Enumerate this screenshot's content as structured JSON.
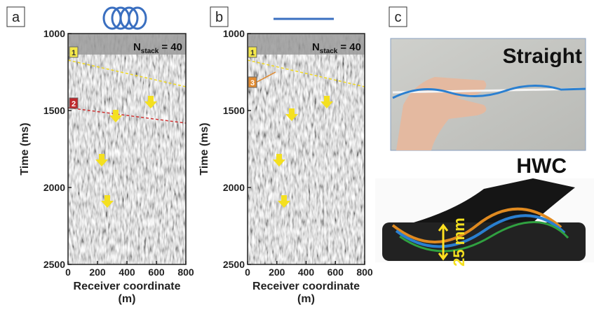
{
  "figure": {
    "panels": [
      {
        "label": "a",
        "stack": {
          "symbol": "N",
          "subscript": "stack",
          "text": "= 40"
        },
        "ylabel": "Time (ms)",
        "xlabel": [
          "Receiver coordinate",
          "(m)"
        ],
        "ylim": [
          1000,
          2500
        ],
        "xlim": [
          0,
          800
        ],
        "yticks": [
          1000,
          1500,
          2000,
          2500
        ],
        "xticks": [
          0,
          200,
          400,
          600,
          800
        ],
        "markers": [
          "1",
          "2"
        ]
      },
      {
        "label": "b",
        "stack": {
          "symbol": "N",
          "subscript": "stack",
          "text": "= 40"
        },
        "ylabel": "Time (ms)",
        "xlabel": [
          "Receiver coordinate",
          "(m)"
        ],
        "ylim": [
          1000,
          2500
        ],
        "xlim": [
          0,
          800
        ],
        "yticks": [
          1000,
          1500,
          2000,
          2500
        ],
        "xticks": [
          0,
          200,
          400,
          600,
          800
        ],
        "markers": [
          "1",
          "3"
        ]
      },
      {
        "label": "c",
        "photos": [
          {
            "caption": "Straight"
          },
          {
            "caption": "HWC",
            "scale": "25 mm"
          }
        ]
      }
    ]
  }
}
